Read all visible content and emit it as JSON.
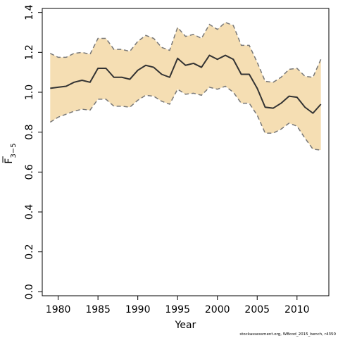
{
  "chart_data": {
    "type": "line",
    "xlabel": "Year",
    "ylabel_base": "F",
    "ylabel_sub": "3−5",
    "xlim": [
      1978,
      2014
    ],
    "ylim": [
      -0.02,
      1.42
    ],
    "x_ticks": [
      1980,
      1985,
      1990,
      1995,
      2000,
      2005,
      2010
    ],
    "y_ticks": [
      0.0,
      0.2,
      0.4,
      0.6,
      0.8,
      1.0,
      1.2,
      1.4
    ],
    "y_tick_labels": [
      "0.0",
      "0.2",
      "0.4",
      "0.6",
      "0.8",
      "1.0",
      "1.2",
      "1.4"
    ],
    "band_color": "#f5deb3",
    "line_color": "#333333",
    "bound_color": "#777777",
    "grid": false,
    "x": [
      1979,
      1980,
      1981,
      1982,
      1983,
      1984,
      1985,
      1986,
      1987,
      1988,
      1989,
      1990,
      1991,
      1992,
      1993,
      1994,
      1995,
      1996,
      1997,
      1998,
      1999,
      2000,
      2001,
      2002,
      2003,
      2004,
      2005,
      2006,
      2007,
      2008,
      2009,
      2010,
      2011,
      2012,
      2013
    ],
    "series": [
      {
        "values": [
          1.02,
          1.025,
          1.03,
          1.05,
          1.06,
          1.05,
          1.12,
          1.12,
          1.075,
          1.075,
          1.065,
          1.11,
          1.135,
          1.125,
          1.09,
          1.075,
          1.17,
          1.135,
          1.145,
          1.125,
          1.185,
          1.165,
          1.185,
          1.165,
          1.09,
          1.09,
          1.02,
          0.925,
          0.92,
          0.945,
          0.98,
          0.975,
          0.925,
          0.895,
          0.94
        ]
      },
      {
        "values": [
          1.195,
          1.175,
          1.175,
          1.195,
          1.2,
          1.19,
          1.27,
          1.27,
          1.215,
          1.215,
          1.205,
          1.255,
          1.285,
          1.27,
          1.225,
          1.21,
          1.325,
          1.28,
          1.29,
          1.27,
          1.34,
          1.315,
          1.35,
          1.335,
          1.235,
          1.235,
          1.15,
          1.055,
          1.05,
          1.075,
          1.115,
          1.12,
          1.08,
          1.075,
          1.165
        ]
      },
      {
        "values": [
          0.85,
          0.875,
          0.89,
          0.905,
          0.915,
          0.91,
          0.965,
          0.965,
          0.93,
          0.93,
          0.925,
          0.96,
          0.985,
          0.98,
          0.955,
          0.94,
          1.015,
          0.99,
          0.995,
          0.985,
          1.025,
          1.015,
          1.03,
          1.0,
          0.945,
          0.945,
          0.885,
          0.795,
          0.795,
          0.815,
          0.845,
          0.83,
          0.77,
          0.715,
          0.71
        ]
      }
    ]
  },
  "footer": {
    "credit": "stockassessment.org,  WBcod_2015_bench,  r4350"
  }
}
